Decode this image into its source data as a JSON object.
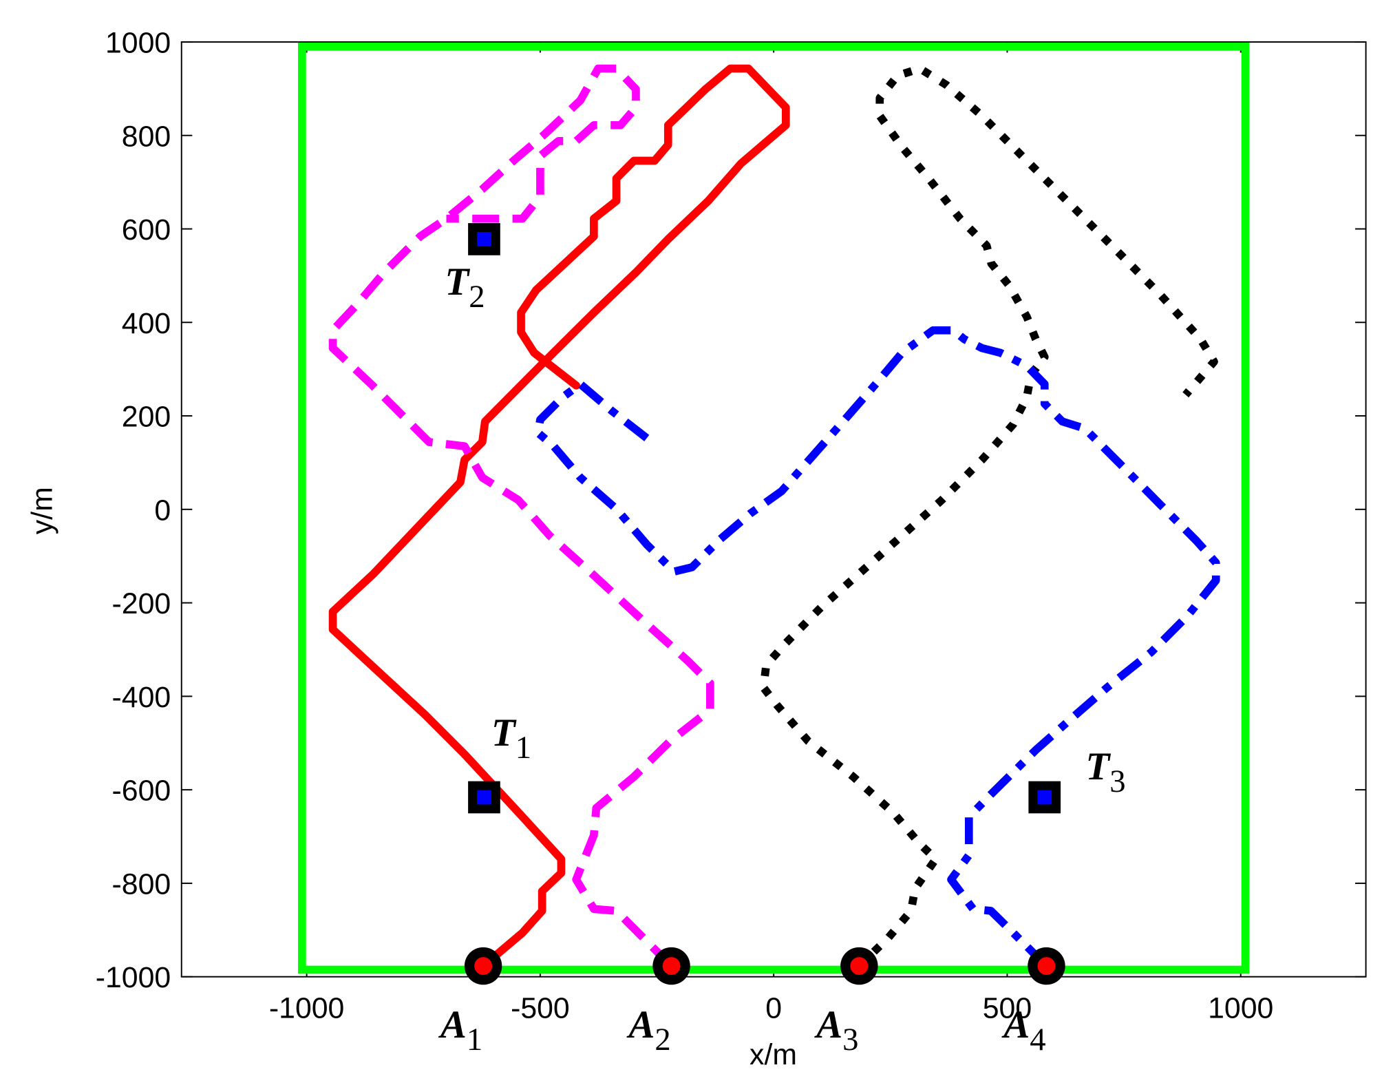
{
  "chart_data": {
    "type": "line",
    "xlabel": "x/m",
    "ylabel": "y/m",
    "xlim": [
      -1268,
      1268
    ],
    "ylim": [
      -1000,
      1000
    ],
    "xticks": [
      -1000,
      -500,
      0,
      500,
      1000
    ],
    "yticks": [
      -1000,
      -800,
      -600,
      -400,
      -200,
      0,
      200,
      400,
      600,
      800,
      1000
    ],
    "boundary": {
      "color": "#00ff00",
      "x": [
        -1010,
        1010
      ],
      "y": [
        -985,
        990
      ]
    },
    "series": [
      {
        "color": "#ff0000",
        "linestyle": "solid",
        "x": [
          -622,
          -538,
          -496,
          -496,
          -455,
          -455,
          -547,
          -662,
          -748,
          -862,
          -944,
          -944,
          -857,
          -767,
          -671,
          -662,
          -624,
          -618,
          -500,
          -385,
          -295,
          -226,
          -140,
          -70,
          26,
          26,
          -54,
          -93,
          -146,
          -226,
          -226,
          -255,
          -299,
          -337,
          -337,
          -385,
          -385,
          -509,
          -541,
          -541,
          -513,
          -423
        ],
        "y": [
          -977,
          -906,
          -859,
          -817,
          -778,
          -748,
          -648,
          -524,
          -438,
          -333,
          -257,
          -219,
          -138,
          -43,
          58,
          106,
          144,
          188,
          307,
          421,
          507,
          578,
          660,
          740,
          822,
          860,
          943,
          943,
          899,
          822,
          780,
          746,
          746,
          708,
          660,
          622,
          584,
          469,
          421,
          379,
          335,
          265
        ]
      },
      {
        "color": "#ff00ff",
        "linestyle": "dashed",
        "x": [
          -219,
          -280,
          -337,
          -385,
          -423,
          -385,
          -380,
          -299,
          -222,
          -136,
          -136,
          -184,
          -280,
          -394,
          -480,
          -547,
          -624,
          -662,
          -738,
          -786,
          -862,
          -944,
          -944,
          -891,
          -834,
          -757,
          -701,
          -624,
          -557,
          -490,
          -414,
          -376,
          -337,
          -295,
          -295,
          -328,
          -385,
          -423,
          -461,
          -500,
          -500,
          -538,
          -701
        ],
        "y": [
          -977,
          -916,
          -859,
          -855,
          -792,
          -697,
          -639,
          -572,
          -496,
          -429,
          -372,
          -324,
          -238,
          -133,
          -56,
          20,
          68,
          135,
          144,
          192,
          268,
          345,
          383,
          440,
          507,
          584,
          622,
          685,
          746,
          803,
          875,
          943,
          943,
          899,
          860,
          822,
          822,
          788,
          788,
          756,
          670,
          622,
          622
        ]
      },
      {
        "color": "#000000",
        "linestyle": "dotted",
        "x": [
          183,
          246,
          294,
          303,
          347,
          313,
          256,
          170,
          74,
          7,
          -22,
          -16,
          26,
          102,
          188,
          275,
          360,
          446,
          513,
          542,
          551,
          580,
          561,
          542,
          504,
          466,
          456,
          399,
          332,
          275,
          227,
          227,
          265,
          313,
          370,
          446,
          542,
          637,
          733,
          828,
          914,
          943,
          882
        ],
        "y": [
          -977,
          -916,
          -859,
          -811,
          -748,
          -716,
          -649,
          -572,
          -496,
          -419,
          -381,
          -333,
          -286,
          -209,
          -133,
          -56,
          20,
          106,
          182,
          240,
          288,
          326,
          364,
          412,
          479,
          526,
          564,
          622,
          708,
          775,
          842,
          880,
          928,
          943,
          908,
          842,
          746,
          651,
          555,
          459,
          364,
          316,
          245
        ]
      },
      {
        "color": "#0000ff",
        "linestyle": "dashdot",
        "x": [
          584,
          513,
          465,
          427,
          380,
          418,
          418,
          465,
          561,
          637,
          714,
          809,
          886,
          947,
          947,
          905,
          828,
          752,
          666,
          618,
          580,
          580,
          542,
          485,
          446,
          408,
          385,
          341,
          275,
          227,
          160,
          84,
          17,
          -50,
          -117,
          -175,
          -213,
          -271,
          -337,
          -414,
          -471,
          -505,
          -500,
          -452,
          -414,
          -347,
          -261
        ],
        "y": [
          -977,
          -906,
          -859,
          -855,
          -792,
          -740,
          -658,
          -610,
          -515,
          -448,
          -381,
          -305,
          -228,
          -152,
          -114,
          -67,
          10,
          87,
          173,
          188,
          226,
          268,
          307,
          335,
          345,
          364,
          383,
          383,
          335,
          278,
          201,
          115,
          39,
          -9,
          -66,
          -124,
          -133,
          -76,
          1,
          68,
          135,
          164,
          192,
          240,
          268,
          211,
          144
        ]
      }
    ],
    "agents": {
      "label": "A",
      "subscripts": [
        "1",
        "2",
        "3",
        "4"
      ],
      "x": [
        -622,
        -219,
        183,
        584
      ],
      "y": [
        -977,
        -977,
        -977,
        -977
      ]
    },
    "targets": {
      "label": "T",
      "subscripts": [
        "1",
        "2",
        "3"
      ],
      "x": [
        -620,
        -620,
        580
      ],
      "y": [
        -616,
        578,
        -616
      ]
    }
  }
}
